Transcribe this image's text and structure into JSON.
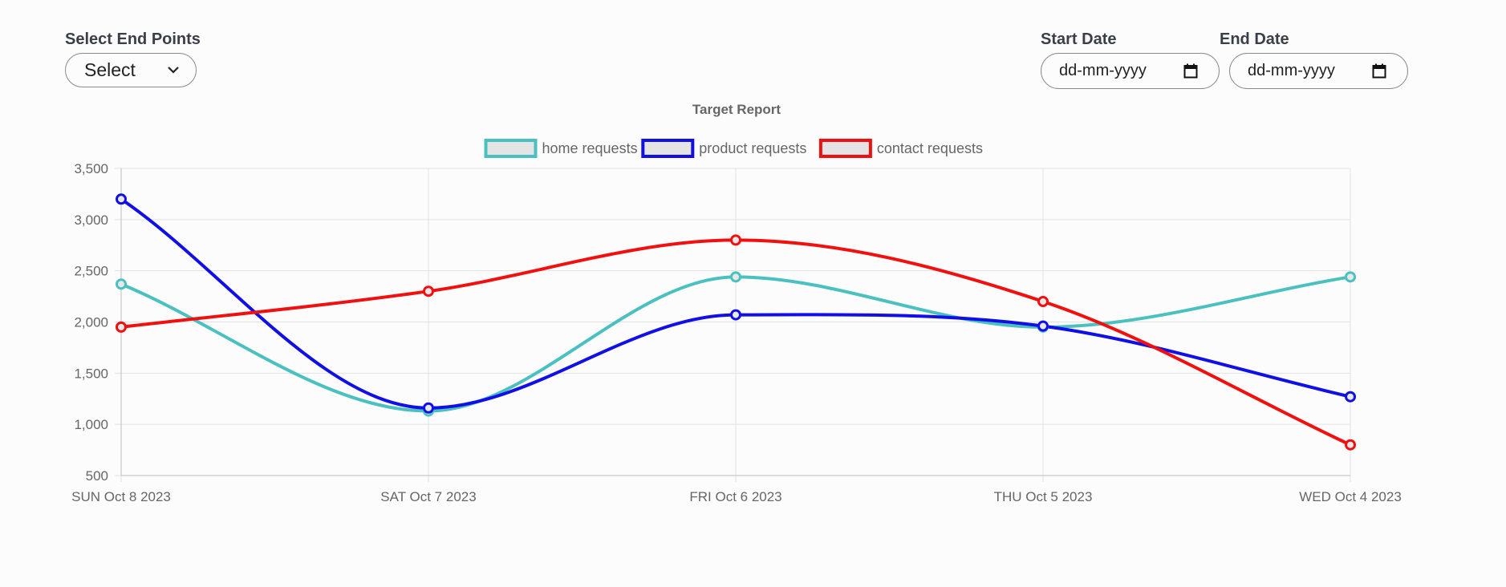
{
  "controls": {
    "endpoints_label": "Select End Points",
    "select_value": "Select",
    "start_label": "Start Date",
    "start_placeholder": "dd-mm-yyyy",
    "end_label": "End Date",
    "end_placeholder": "dd-mm-yyyy"
  },
  "chart_data": {
    "type": "line",
    "title": "Target Report",
    "categories": [
      "SUN Oct 8 2023",
      "SAT Oct 7 2023",
      "FRI Oct 6 2023",
      "THU Oct 5 2023",
      "WED Oct 4 2023"
    ],
    "ylim": [
      500,
      3500
    ],
    "yticks": [
      500,
      1000,
      1500,
      2000,
      2500,
      3000,
      3500
    ],
    "ytick_labels": [
      "500",
      "1,000",
      "1,500",
      "2,000",
      "2,500",
      "3,000",
      "3,500"
    ],
    "grid": true,
    "legend_position": "top-center",
    "series": [
      {
        "name": "home requests",
        "color": "#4bc0c0",
        "values": [
          2370,
          1130,
          2440,
          1950,
          2440
        ]
      },
      {
        "name": "product requests",
        "color": "#1010e6",
        "values": [
          3200,
          1160,
          2070,
          1960,
          1270
        ]
      },
      {
        "name": "contact requests",
        "color": "#f01010",
        "values": [
          1950,
          2300,
          2800,
          2200,
          800
        ]
      }
    ]
  }
}
